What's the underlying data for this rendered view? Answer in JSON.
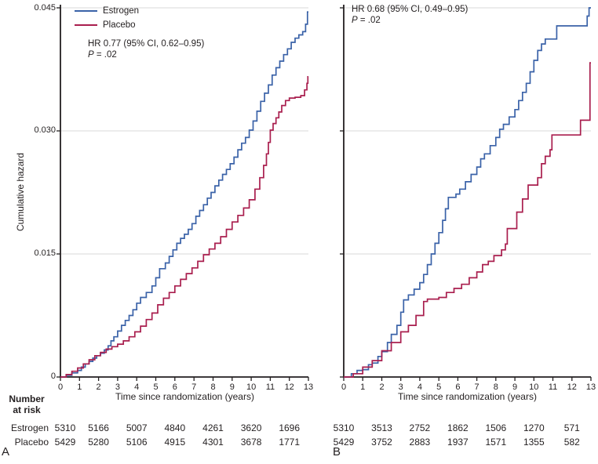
{
  "figure": {
    "y_axis_title": "Cumulative hazard",
    "x_axis_title": "Time since randomization (years)",
    "risk_header_line1": "Number",
    "risk_header_line2": "at risk",
    "risk_row_labels": [
      "Estrogen",
      "Placebo"
    ],
    "panel_a_letter": "A",
    "panel_b_letter": "B",
    "colors": {
      "estrogen": "#3a62a8",
      "placebo": "#a91e4e",
      "gridline": "#d9d9d9",
      "axis": "#231f20"
    }
  },
  "legend": {
    "items": [
      {
        "label": "Estrogen",
        "color": "#3a62a8"
      },
      {
        "label": "Placebo",
        "color": "#a91e4e"
      }
    ]
  },
  "annotations": {
    "a": {
      "line1": "HR 0.77 (95% CI, 0.62–0.95)",
      "p": "P",
      "p_rest": " = .02"
    },
    "b": {
      "line1": "HR 0.68 (95% CI, 0.49–0.95)",
      "p": "P",
      "p_rest": " = .02"
    }
  },
  "chart_data": [
    {
      "type": "line",
      "step": true,
      "panel": "A",
      "xlabel": "Time since randomization (years)",
      "ylabel": "Cumulative hazard",
      "xlim": [
        0,
        13
      ],
      "ylim": [
        0,
        0.045
      ],
      "xticks": [
        0,
        1,
        2,
        3,
        4,
        5,
        6,
        7,
        8,
        9,
        10,
        11,
        12,
        13
      ],
      "yticks": [
        0,
        0.015,
        0.03,
        0.045
      ],
      "ytick_labels": [
        "0",
        "0.015",
        "0.030",
        "0.045"
      ],
      "grid": "horizontal",
      "legend_position": "top-left",
      "annotation": "HR 0.77 (95% CI, 0.62–0.95), P = .02",
      "series": [
        {
          "name": "Estrogen",
          "color": "#3a62a8",
          "points": [
            [
              0,
              0
            ],
            [
              0.3,
              0.0002
            ],
            [
              0.6,
              0.0005
            ],
            [
              0.9,
              0.0008
            ],
            [
              1.1,
              0.0012
            ],
            [
              1.3,
              0.0016
            ],
            [
              1.5,
              0.0019
            ],
            [
              1.7,
              0.0023
            ],
            [
              1.9,
              0.0026
            ],
            [
              2.1,
              0.0029
            ],
            [
              2.3,
              0.0033
            ],
            [
              2.5,
              0.0038
            ],
            [
              2.65,
              0.0044
            ],
            [
              2.8,
              0.0049
            ],
            [
              3.0,
              0.0056
            ],
            [
              3.2,
              0.0063
            ],
            [
              3.4,
              0.0069
            ],
            [
              3.6,
              0.0075
            ],
            [
              3.8,
              0.0082
            ],
            [
              4.0,
              0.009
            ],
            [
              4.2,
              0.0097
            ],
            [
              4.5,
              0.0103
            ],
            [
              4.8,
              0.0111
            ],
            [
              5.0,
              0.0121
            ],
            [
              5.2,
              0.0132
            ],
            [
              5.5,
              0.0139
            ],
            [
              5.7,
              0.0147
            ],
            [
              5.9,
              0.0155
            ],
            [
              6.1,
              0.0163
            ],
            [
              6.3,
              0.0169
            ],
            [
              6.5,
              0.0174
            ],
            [
              6.7,
              0.018
            ],
            [
              6.9,
              0.0187
            ],
            [
              7.1,
              0.0196
            ],
            [
              7.3,
              0.0203
            ],
            [
              7.5,
              0.021
            ],
            [
              7.7,
              0.0218
            ],
            [
              7.9,
              0.0225
            ],
            [
              8.1,
              0.0233
            ],
            [
              8.3,
              0.024
            ],
            [
              8.5,
              0.0247
            ],
            [
              8.7,
              0.0253
            ],
            [
              8.9,
              0.026
            ],
            [
              9.1,
              0.0268
            ],
            [
              9.3,
              0.0277
            ],
            [
              9.5,
              0.0285
            ],
            [
              9.7,
              0.0292
            ],
            [
              9.9,
              0.0301
            ],
            [
              10.1,
              0.0312
            ],
            [
              10.3,
              0.0324
            ],
            [
              10.5,
              0.0336
            ],
            [
              10.7,
              0.0346
            ],
            [
              10.9,
              0.0356
            ],
            [
              11.1,
              0.0368
            ],
            [
              11.3,
              0.0377
            ],
            [
              11.5,
              0.0385
            ],
            [
              11.7,
              0.0393
            ],
            [
              11.9,
              0.04
            ],
            [
              12.1,
              0.0408
            ],
            [
              12.3,
              0.0413
            ],
            [
              12.5,
              0.0417
            ],
            [
              12.7,
              0.0421
            ],
            [
              12.85,
              0.043
            ],
            [
              12.95,
              0.0445
            ],
            [
              13,
              0.0445
            ]
          ]
        },
        {
          "name": "Placebo",
          "color": "#a91e4e",
          "points": [
            [
              0,
              0
            ],
            [
              0.3,
              0.0003
            ],
            [
              0.6,
              0.0007
            ],
            [
              0.9,
              0.0011
            ],
            [
              1.2,
              0.0016
            ],
            [
              1.5,
              0.0021
            ],
            [
              1.8,
              0.0026
            ],
            [
              2.1,
              0.003
            ],
            [
              2.4,
              0.0034
            ],
            [
              2.7,
              0.0037
            ],
            [
              3.0,
              0.004
            ],
            [
              3.3,
              0.0044
            ],
            [
              3.6,
              0.0049
            ],
            [
              3.9,
              0.0055
            ],
            [
              4.2,
              0.0062
            ],
            [
              4.5,
              0.007
            ],
            [
              4.8,
              0.0078
            ],
            [
              5.1,
              0.0088
            ],
            [
              5.4,
              0.0096
            ],
            [
              5.7,
              0.0103
            ],
            [
              6.0,
              0.0111
            ],
            [
              6.3,
              0.0119
            ],
            [
              6.6,
              0.0126
            ],
            [
              6.9,
              0.0133
            ],
            [
              7.2,
              0.0141
            ],
            [
              7.5,
              0.0149
            ],
            [
              7.8,
              0.0156
            ],
            [
              8.1,
              0.0163
            ],
            [
              8.4,
              0.0171
            ],
            [
              8.7,
              0.018
            ],
            [
              9.0,
              0.0189
            ],
            [
              9.3,
              0.0197
            ],
            [
              9.6,
              0.0206
            ],
            [
              9.9,
              0.0216
            ],
            [
              10.2,
              0.0229
            ],
            [
              10.45,
              0.0243
            ],
            [
              10.65,
              0.0258
            ],
            [
              10.8,
              0.0272
            ],
            [
              10.9,
              0.0286
            ],
            [
              11.0,
              0.0301
            ],
            [
              11.15,
              0.0309
            ],
            [
              11.3,
              0.0316
            ],
            [
              11.45,
              0.0323
            ],
            [
              11.6,
              0.0331
            ],
            [
              11.8,
              0.0337
            ],
            [
              12.0,
              0.034
            ],
            [
              12.3,
              0.0341
            ],
            [
              12.6,
              0.0343
            ],
            [
              12.8,
              0.035
            ],
            [
              12.92,
              0.0358
            ],
            [
              12.97,
              0.0366
            ],
            [
              13,
              0.0366
            ]
          ]
        }
      ],
      "number_at_risk": {
        "years": [
          0,
          2,
          4,
          6,
          8,
          10,
          12
        ],
        "rows": [
          {
            "label": "Estrogen",
            "values": [
              "5310",
              "5166",
              "5007",
              "4840",
              "4261",
              "3620",
              "1696"
            ]
          },
          {
            "label": "Placebo",
            "values": [
              "5429",
              "5280",
              "5106",
              "4915",
              "4301",
              "3678",
              "1771"
            ]
          }
        ]
      }
    },
    {
      "type": "line",
      "step": true,
      "panel": "B",
      "xlabel": "Time since randomization (years)",
      "ylabel": "Cumulative hazard",
      "xlim": [
        0,
        13
      ],
      "ylim": [
        0,
        0.045
      ],
      "xticks": [
        0,
        1,
        2,
        3,
        4,
        5,
        6,
        7,
        8,
        9,
        10,
        11,
        12,
        13
      ],
      "yticks": [
        0,
        0.015,
        0.03,
        0.045
      ],
      "ytick_labels": [
        "",
        "",
        "",
        ""
      ],
      "grid": "horizontal",
      "legend_position": "none",
      "annotation": "HR 0.68 (95% CI, 0.49–0.95), P = .02",
      "series": [
        {
          "name": "Estrogen",
          "color": "#3a62a8",
          "points": [
            [
              0,
              0
            ],
            [
              0.4,
              0.0004
            ],
            [
              0.7,
              0.0008
            ],
            [
              1.0,
              0.0009
            ],
            [
              1.3,
              0.0015
            ],
            [
              1.5,
              0.0017
            ],
            [
              1.8,
              0.0025
            ],
            [
              2.0,
              0.0031
            ],
            [
              2.3,
              0.0042
            ],
            [
              2.5,
              0.0052
            ],
            [
              2.8,
              0.0063
            ],
            [
              3.0,
              0.0079
            ],
            [
              3.15,
              0.0094
            ],
            [
              3.4,
              0.01
            ],
            [
              3.7,
              0.0107
            ],
            [
              4.0,
              0.0115
            ],
            [
              4.2,
              0.0125
            ],
            [
              4.4,
              0.0137
            ],
            [
              4.6,
              0.015
            ],
            [
              4.8,
              0.0163
            ],
            [
              5.0,
              0.0176
            ],
            [
              5.2,
              0.0191
            ],
            [
              5.35,
              0.0205
            ],
            [
              5.5,
              0.0219
            ],
            [
              5.9,
              0.0223
            ],
            [
              6.1,
              0.0229
            ],
            [
              6.4,
              0.0238
            ],
            [
              6.7,
              0.0247
            ],
            [
              7.0,
              0.0256
            ],
            [
              7.2,
              0.0266
            ],
            [
              7.4,
              0.0272
            ],
            [
              7.7,
              0.0282
            ],
            [
              8.0,
              0.0292
            ],
            [
              8.2,
              0.0302
            ],
            [
              8.4,
              0.0308
            ],
            [
              8.7,
              0.0317
            ],
            [
              9.0,
              0.0326
            ],
            [
              9.2,
              0.0337
            ],
            [
              9.4,
              0.0347
            ],
            [
              9.6,
              0.0358
            ],
            [
              9.8,
              0.0372
            ],
            [
              10.0,
              0.0386
            ],
            [
              10.2,
              0.0398
            ],
            [
              10.4,
              0.0406
            ],
            [
              10.6,
              0.0412
            ],
            [
              11.2,
              0.0428
            ],
            [
              12.8,
              0.044
            ],
            [
              12.9,
              0.045
            ],
            [
              13,
              0.045
            ]
          ]
        },
        {
          "name": "Placebo",
          "color": "#a91e4e",
          "points": [
            [
              0,
              0
            ],
            [
              0.5,
              0.0004
            ],
            [
              1.0,
              0.0012
            ],
            [
              1.5,
              0.002
            ],
            [
              2.0,
              0.0032
            ],
            [
              2.5,
              0.0042
            ],
            [
              3.0,
              0.0055
            ],
            [
              3.4,
              0.0063
            ],
            [
              3.8,
              0.0075
            ],
            [
              4.2,
              0.0092
            ],
            [
              4.4,
              0.0095
            ],
            [
              5.0,
              0.0097
            ],
            [
              5.4,
              0.0103
            ],
            [
              5.8,
              0.0108
            ],
            [
              6.2,
              0.0113
            ],
            [
              6.6,
              0.0121
            ],
            [
              7.0,
              0.0128
            ],
            [
              7.3,
              0.0137
            ],
            [
              7.6,
              0.0141
            ],
            [
              7.9,
              0.0148
            ],
            [
              8.3,
              0.0155
            ],
            [
              8.5,
              0.0162
            ],
            [
              8.6,
              0.0181
            ],
            [
              9.1,
              0.0201
            ],
            [
              9.4,
              0.0217
            ],
            [
              9.7,
              0.0234
            ],
            [
              10.2,
              0.0243
            ],
            [
              10.4,
              0.026
            ],
            [
              10.6,
              0.0269
            ],
            [
              10.85,
              0.0277
            ],
            [
              10.95,
              0.0295
            ],
            [
              12.45,
              0.0313
            ],
            [
              12.95,
              0.0383
            ],
            [
              13,
              0.0383
            ]
          ]
        }
      ],
      "number_at_risk": {
        "years": [
          0,
          2,
          4,
          6,
          8,
          10,
          12
        ],
        "rows": [
          {
            "label": "",
            "values": [
              "5310",
              "3513",
              "2752",
              "1862",
              "1506",
              "1270",
              "571"
            ]
          },
          {
            "label": "",
            "values": [
              "5429",
              "3752",
              "2883",
              "1937",
              "1571",
              "1355",
              "582"
            ]
          }
        ]
      }
    }
  ]
}
